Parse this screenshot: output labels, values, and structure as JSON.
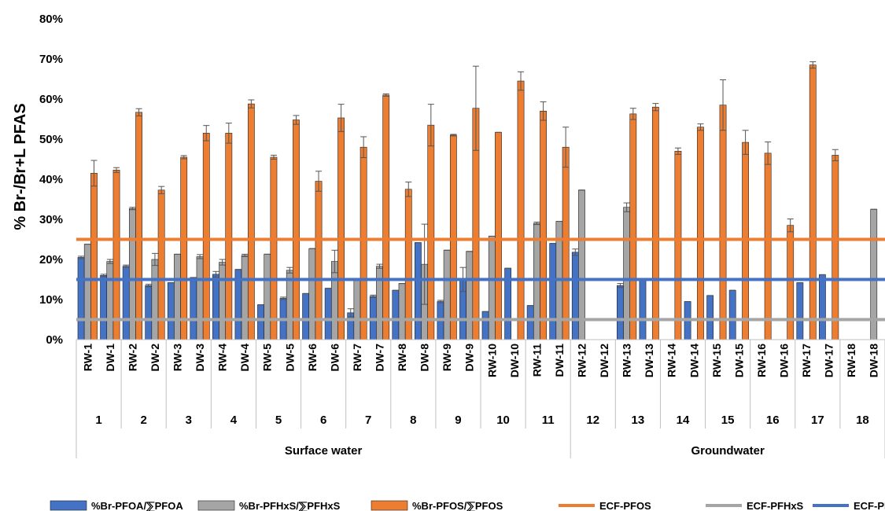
{
  "chart_data": {
    "type": "bar",
    "ylabel": "% Br-/Br+L PFAS",
    "ylim": [
      0,
      80
    ],
    "yticks": [
      "0%",
      "10%",
      "20%",
      "30%",
      "40%",
      "50%",
      "60%",
      "70%",
      "80%"
    ],
    "categories": [
      "RW-1",
      "DW-1",
      "RW-2",
      "DW-2",
      "RW-3",
      "DW-3",
      "RW-4",
      "DW-4",
      "RW-5",
      "DW-5",
      "RW-6",
      "DW-6",
      "RW-7",
      "DW-7",
      "RW-8",
      "DW-8",
      "RW-9",
      "DW-9",
      "RW-10",
      "DW-10",
      "RW-11",
      "DW-11",
      "RW-12",
      "DW-12",
      "RW-13",
      "DW-13",
      "RW-14",
      "DW-14",
      "RW-15",
      "DW-15",
      "RW-16",
      "DW-16",
      "RW-17",
      "DW-17",
      "RW-18",
      "DW-18"
    ],
    "groups": [
      "1",
      "2",
      "3",
      "4",
      "5",
      "6",
      "7",
      "8",
      "9",
      "10",
      "11",
      "12",
      "13",
      "14",
      "15",
      "16",
      "17",
      "18"
    ],
    "supergroups": [
      {
        "label": "Surface water",
        "from": 0,
        "to": 11
      },
      {
        "label": "Groundwater",
        "from": 11,
        "to": 18
      }
    ],
    "series": [
      {
        "name": "%Br-PFOA/⅀PFOA",
        "color": "#4472C4",
        "values": [
          20.5,
          16,
          18.3,
          13.5,
          14.2,
          15.5,
          16.3,
          17.5,
          8.7,
          10.3,
          11.5,
          12.8,
          6.7,
          10.8,
          12.3,
          24.2,
          9.5,
          15,
          7,
          17.8,
          8.5,
          24,
          21.8,
          0,
          13.5,
          15,
          0,
          9.5,
          11,
          12.3,
          0,
          0,
          14.2,
          16.2,
          0,
          0
        ],
        "errors": [
          0.3,
          0.3,
          0.3,
          0.3,
          0,
          0,
          0.7,
          0,
          0,
          0.3,
          0,
          0,
          1,
          0.3,
          0,
          0,
          0.3,
          3,
          0,
          0,
          0,
          0,
          0.8,
          0,
          0.5,
          0,
          0,
          0,
          0,
          0,
          0,
          0,
          0,
          0,
          0,
          0
        ]
      },
      {
        "name": "%Br-PFHxS/⅀PFHxS",
        "color": "#A5A5A5",
        "values": [
          23.8,
          19.5,
          32.7,
          20,
          21.3,
          20.7,
          19.3,
          21,
          21.3,
          17.3,
          22.7,
          19.5,
          15,
          18.3,
          14,
          18.8,
          22.3,
          22,
          25.8,
          0,
          29,
          29.5,
          37.3,
          0,
          33,
          0,
          0,
          0,
          0,
          0,
          0,
          0,
          0,
          0,
          0,
          32.5
        ],
        "errors": [
          0,
          0.5,
          0.3,
          1.5,
          0,
          0.5,
          0.7,
          0.3,
          0,
          0.7,
          0,
          2.8,
          0,
          0.5,
          0,
          10,
          0,
          0,
          0,
          0,
          0.3,
          0,
          0,
          0,
          1.1,
          0,
          0,
          0,
          0,
          0,
          0,
          0,
          0,
          0,
          0,
          0
        ]
      },
      {
        "name": "%Br-PFOS/⅀PFOS",
        "color": "#ED7D31",
        "values": [
          41.5,
          42.3,
          56.7,
          37.3,
          45.5,
          51.5,
          51.5,
          58.8,
          45.5,
          54.8,
          39.5,
          55.3,
          48,
          61,
          37.5,
          53.5,
          51,
          57.7,
          51.7,
          64.5,
          57,
          48,
          0,
          0,
          56.3,
          58,
          47,
          53,
          58.5,
          49.2,
          46.5,
          28.5,
          68.5,
          46,
          0,
          0
        ],
        "errors": [
          3.2,
          0.6,
          0.9,
          0.9,
          0.4,
          1.9,
          2.5,
          1,
          0.5,
          1.1,
          2.5,
          3.4,
          2.6,
          0.3,
          1.8,
          5.2,
          0.2,
          10.5,
          0,
          2.3,
          2.3,
          5,
          0,
          0,
          1.4,
          0.9,
          0.8,
          0.8,
          6.3,
          3,
          2.8,
          1.6,
          0.8,
          1.4,
          0,
          0
        ]
      }
    ],
    "reference_lines": [
      {
        "name": "ECF-PFOS",
        "value": 25,
        "color": "#ED7D31"
      },
      {
        "name": "ECF-PFHxS",
        "value": 5,
        "color": "#A5A5A5"
      },
      {
        "name": "ECF-PFOA",
        "value": 15,
        "color": "#4472C4"
      }
    ],
    "legend_position": "bottom",
    "grid": false
  }
}
